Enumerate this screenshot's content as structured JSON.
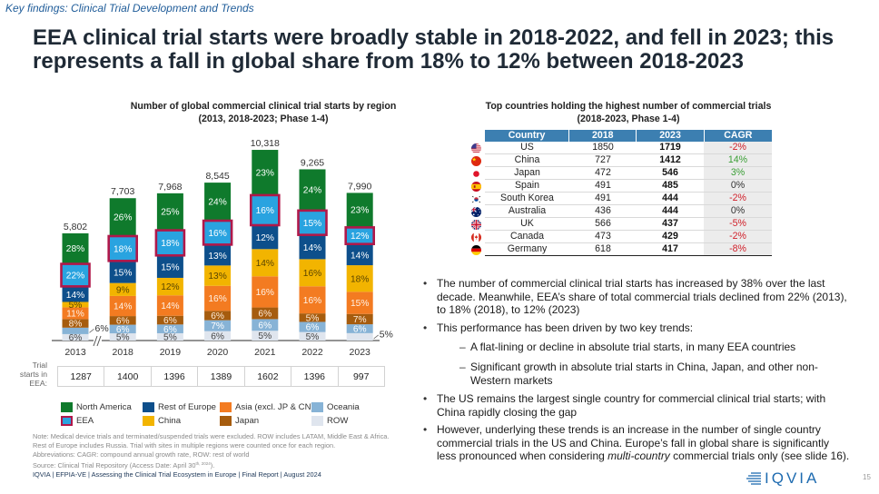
{
  "header": {
    "section": "Key findings: Clinical Trial Development and Trends",
    "title": "EEA clinical trial starts were broadly stable in 2018-2022, and fell in 2023; this\nrepresents a fall in global share from 18% to 12% between 2018-2023"
  },
  "chart_data": [
    {
      "type": "bar",
      "stacked": true,
      "title": "Number of global commercial clinical trial starts by region",
      "subtitle": "(2013, 2018-2023; Phase 1-4)",
      "xlabel": "",
      "ylabel": "",
      "categories": [
        "2013",
        "2018",
        "2019",
        "2020",
        "2021",
        "2022",
        "2023"
      ],
      "totals": [
        5802,
        7703,
        7968,
        8545,
        10318,
        9265,
        7990
      ],
      "total_labels": [
        "5,802",
        "7,703",
        "7,968",
        "8,545",
        "10,318",
        "9,265",
        "7,990"
      ],
      "value_unit": "% of total",
      "axis_break_after": "2013",
      "series": [
        {
          "name": "ROW",
          "color": "#dfe5ee",
          "label_color": "#444444",
          "values": [
            6,
            5,
            5,
            6,
            5,
            5,
            5
          ]
        },
        {
          "name": "Oceania",
          "color": "#87b3d6",
          "label_color": "#ffffff",
          "values": [
            6,
            6,
            6,
            7,
            6,
            6,
            6
          ]
        },
        {
          "name": "Japan",
          "color": "#a65c0e",
          "label_color": "#ffeedd",
          "values": [
            8,
            6,
            6,
            6,
            6,
            5,
            7
          ]
        },
        {
          "name": "Asia (excl. JP & CN)",
          "color": "#f37b21",
          "label_color": "#fff2e6",
          "values": [
            11,
            14,
            14,
            16,
            16,
            16,
            15
          ]
        },
        {
          "name": "China",
          "color": "#f2b400",
          "label_color": "#5a4500",
          "values": [
            5,
            9,
            12,
            13,
            14,
            16,
            18
          ]
        },
        {
          "name": "Rest of Europe",
          "color": "#0d4f8b",
          "label_color": "#ffffff",
          "values": [
            14,
            15,
            15,
            13,
            12,
            14,
            14
          ]
        },
        {
          "name": "EEA",
          "color": "#29a3e0",
          "label_color": "#ffffff",
          "border_color": "#b0184a",
          "values": [
            22,
            18,
            18,
            16,
            16,
            15,
            12
          ]
        },
        {
          "name": "North America",
          "color": "#0f7a2c",
          "label_color": "#ffffff",
          "values": [
            28,
            26,
            25,
            24,
            23,
            24,
            23
          ]
        }
      ],
      "legend": [
        "North America",
        "Rest of Europe",
        "Asia (excl. JP & CN)",
        "Oceania",
        "EEA",
        "China",
        "Japan",
        "ROW"
      ],
      "legend_position": "bottom",
      "eea_trial_starts": {
        "label": "Trial\nstarts in\nEEA:",
        "values": [
          "1287",
          "1400",
          "1396",
          "1389",
          "1602",
          "1396",
          "997"
        ]
      }
    },
    {
      "type": "table",
      "title": "Top countries holding the highest number of commercial trials",
      "subtitle": "(2018-2023, Phase 1-4)",
      "columns": [
        "Country",
        "2018",
        "2023",
        "CAGR"
      ],
      "rows": [
        {
          "flag": "us",
          "country": "US",
          "y2018": "1850",
          "y2023": "1719",
          "cagr": "-2%",
          "trend": "negative"
        },
        {
          "flag": "cn",
          "country": "China",
          "y2018": "727",
          "y2023": "1412",
          "cagr": "14%",
          "trend": "positive"
        },
        {
          "flag": "jp",
          "country": "Japan",
          "y2018": "472",
          "y2023": "546",
          "cagr": "3%",
          "trend": "positive"
        },
        {
          "flag": "es",
          "country": "Spain",
          "y2018": "491",
          "y2023": "485",
          "cagr": "0%",
          "trend": "neutral"
        },
        {
          "flag": "kr",
          "country": "South Korea",
          "y2018": "491",
          "y2023": "444",
          "cagr": "-2%",
          "trend": "negative"
        },
        {
          "flag": "au",
          "country": "Australia",
          "y2018": "436",
          "y2023": "444",
          "cagr": "0%",
          "trend": "neutral"
        },
        {
          "flag": "gb",
          "country": "UK",
          "y2018": "566",
          "y2023": "437",
          "cagr": "-5%",
          "trend": "negative"
        },
        {
          "flag": "ca",
          "country": "Canada",
          "y2018": "473",
          "y2023": "429",
          "cagr": "-2%",
          "trend": "negative"
        },
        {
          "flag": "de",
          "country": "Germany",
          "y2018": "618",
          "y2023": "417",
          "cagr": "-8%",
          "trend": "negative"
        }
      ],
      "colors": {
        "header": "#3c7fb1",
        "positive": "#3a9e35",
        "negative": "#d0202a",
        "neutral": "#333333"
      }
    }
  ],
  "bullets": [
    {
      "text": "The number of commercial clinical trial starts has increased by 38% over the last\ndecade. Meanwhile, EEA’s share of total commercial trials declined from 22% (2013),\nto 18% (2018), to 12% (2023)"
    },
    {
      "text": "This performance has been driven by two key trends:",
      "sub": [
        "A flat-lining or decline in absolute trial starts, in many EEA countries",
        "Significant growth in absolute trial starts in China, Japan, and other non-\nWestern markets"
      ]
    },
    {
      "text": "The US remains the largest single country for commercial clinical trial starts; with\nChina rapidly closing the gap"
    },
    {
      "text_before": "However, underlying these trends is an increase in the number of single country\ncommercial trials in the US and China. Europe’s fall in global share is significantly\nless pronounced when considering ",
      "text_italic": "multi-country",
      "text_after": " commercial trials only (see slide 16)."
    }
  ],
  "notes": {
    "lines": [
      "Note: Medical device trials and terminated/suspended trials were excluded. ROW includes LATAM, Middle East & Africa.",
      "Rest of Europe includes Russia. Trial with sites in multiple regions were counted once for each region.",
      "Abbreviations: CAGR: compound annual growth rate, ROW: rest of world"
    ],
    "source": {
      "text": "Source: Clinical Trial Repository (Access Date: April 30",
      "sup": "th, 2024",
      "after": ")."
    }
  },
  "footer": {
    "report_line": "IQVIA | EFPIA-VE | Assessing the Clinical Trial Ecosystem in Europe | Final Report | August 2024",
    "logo_text": "IQVIA",
    "page_number": "15"
  }
}
